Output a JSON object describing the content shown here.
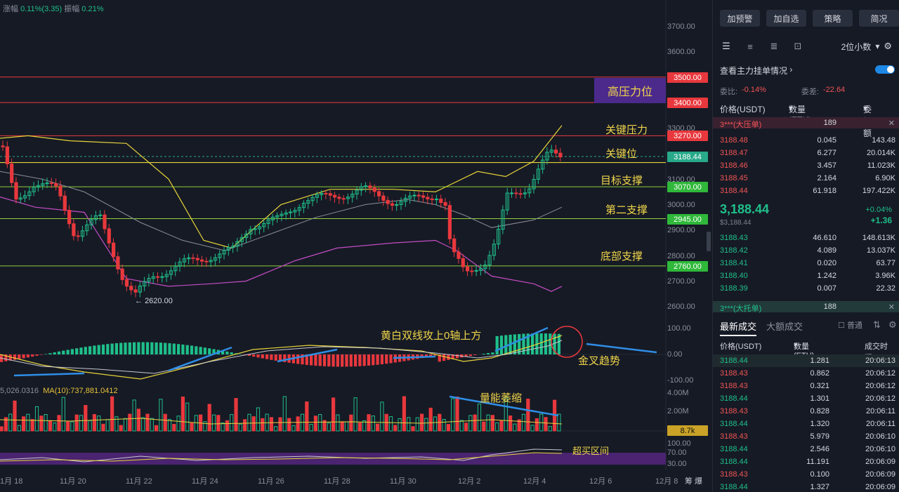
{
  "stats": {
    "change_label": "涨幅",
    "change_value": "0.11%(3.35)",
    "amp_label": "振幅",
    "amp_value": "0.21%"
  },
  "y_ticks": [
    "3700.00",
    "3600.00",
    "3300.00",
    "3100.00",
    "3000.00",
    "2900.00",
    "2800.00",
    "2700.00",
    "2600.00"
  ],
  "price_tags": [
    {
      "value": "3500.00",
      "color": "#e8383d"
    },
    {
      "value": "3400.00",
      "color": "#e8383d"
    },
    {
      "value": "3270.00",
      "color": "#e8383d"
    },
    {
      "value": "3188.44",
      "color": "#27a98a"
    },
    {
      "value": "3070.00",
      "color": "#2fb83a"
    },
    {
      "value": "2945.00",
      "color": "#2fb83a"
    },
    {
      "value": "2760.00",
      "color": "#2fb83a"
    }
  ],
  "annotations": {
    "high_pressure": "高压力位",
    "key_pressure": "关键压力",
    "key_level": "关键位",
    "target_support": "目标支撑",
    "second_support": "第二支撑",
    "bottom_support": "底部支撑",
    "macd_note": "黄白双线攻上0轴上方",
    "golden_cross": "金叉趋势",
    "volume_note": "量能萎缩",
    "overbought": "超买区间"
  },
  "low_marker": "2620.00",
  "macd_ticks": [
    "100.00",
    "0.00",
    "-100.00"
  ],
  "vol_label": "5,026.0316",
  "vol_ma": "MA(10):737,881.0412",
  "vol_ticks": [
    "4.00M",
    "2.00M"
  ],
  "vol_tag": "8.7k",
  "rsi_ticks": [
    "100.00",
    "70.00",
    "30.00"
  ],
  "x_ticks": [
    "1月 18",
    "11月 20",
    "11月 22",
    "11月 24",
    "11月 26",
    "11月 28",
    "11月 30",
    "12月 2",
    "12月 4",
    "12月 6",
    "12月 8"
  ],
  "x_right": "筹 爆",
  "panel": {
    "buttons": [
      "加预警",
      "加自选",
      "策略",
      "简况"
    ],
    "decimals": "2位小数",
    "watch_label": "查看主力挂单情况",
    "ratio_label": "委比:",
    "ratio_value": "-0.14%",
    "diff_label": "委差:",
    "diff_value": "-22.64",
    "ob_cols": [
      "价格(USDT)",
      "数量 (ETH)",
      "委托额"
    ],
    "ask_big": {
      "name": "3***(大压单)",
      "qty": "189"
    },
    "asks": [
      [
        "3188.48",
        "0.045",
        "143.48"
      ],
      [
        "3188.47",
        "6.277",
        "20.014K"
      ],
      [
        "3188.46",
        "3.457",
        "11.023K"
      ],
      [
        "3188.45",
        "2.164",
        "6.90K"
      ],
      [
        "3188.44",
        "61.918",
        "197.422K"
      ]
    ],
    "last_price": "3,188.44",
    "last_sub": "$3,188.44",
    "last_pct": "+0.04%",
    "last_chg": "+1.36",
    "bids": [
      [
        "3188.43",
        "46.610",
        "148.613K"
      ],
      [
        "3188.42",
        "4.089",
        "13.037K"
      ],
      [
        "3188.41",
        "0.020",
        "63.77"
      ],
      [
        "3188.40",
        "1.242",
        "3.96K"
      ],
      [
        "3188.39",
        "0.007",
        "22.32"
      ]
    ],
    "bid_big": {
      "name": "3***(大托单)",
      "qty": "188"
    },
    "tab_latest": "最新成交",
    "tab_large": "大额成交",
    "normal_label": "普通",
    "trade_cols": [
      "价格(USDT)",
      "数量(ETH)",
      "成交时间"
    ],
    "trades": [
      [
        "3188.44",
        "1.281",
        "20:06:13",
        "g"
      ],
      [
        "3188.43",
        "0.862",
        "20:06:12",
        "r"
      ],
      [
        "3188.43",
        "0.321",
        "20:06:12",
        "r"
      ],
      [
        "3188.44",
        "1.301",
        "20:06:12",
        "g"
      ],
      [
        "3188.43",
        "0.828",
        "20:06:11",
        "r"
      ],
      [
        "3188.44",
        "1.320",
        "20:06:11",
        "g"
      ],
      [
        "3188.43",
        "5.979",
        "20:06:10",
        "r"
      ],
      [
        "3188.44",
        "2.546",
        "20:06:10",
        "g"
      ],
      [
        "3188.44",
        "11.191",
        "20:06:09",
        "g"
      ],
      [
        "3188.43",
        "0.100",
        "20:06:09",
        "r"
      ],
      [
        "3188.44",
        "1.327",
        "20:06:09",
        "g"
      ]
    ]
  }
}
